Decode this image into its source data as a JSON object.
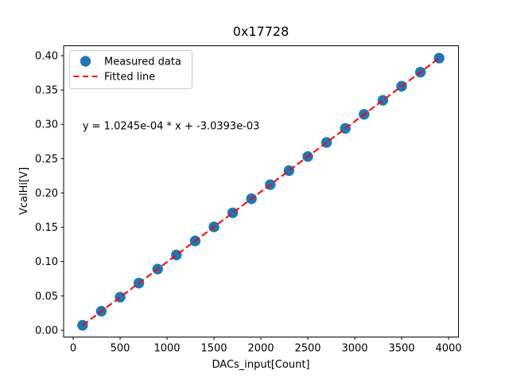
{
  "figure": {
    "background": "#ffffff"
  },
  "chart_data": {
    "type": "scatter",
    "title": "0x17728",
    "xlabel": "DACs_input[Count]",
    "ylabel": "VcalHi[V]",
    "xlim": [
      -102,
      4106
    ],
    "ylim": [
      -0.0099,
      0.4145
    ],
    "xticks": [
      0,
      500,
      1000,
      1500,
      2000,
      2500,
      3000,
      3500,
      4000
    ],
    "xtick_labels": [
      "0",
      "500",
      "1000",
      "1500",
      "2000",
      "2500",
      "3000",
      "3500",
      "4000"
    ],
    "yticks": [
      0.0,
      0.05,
      0.1,
      0.15,
      0.2,
      0.25,
      0.3,
      0.35,
      0.4
    ],
    "ytick_labels": [
      "0.00",
      "0.05",
      "0.10",
      "0.15",
      "0.20",
      "0.25",
      "0.30",
      "0.35",
      "0.40"
    ],
    "grid": false,
    "legend": {
      "position": "upper-left",
      "entries": [
        {
          "label": "Measured data",
          "marker": "circle",
          "color": "#1f77b4"
        },
        {
          "label": "Fitted line",
          "marker": "dashed-line",
          "color": "#ff0000"
        }
      ]
    },
    "annotation": {
      "text": "y = 1.0245e-04 * x + -3.0393e-03",
      "x": 100,
      "y": 0.293
    },
    "series": [
      {
        "name": "Measured data",
        "type": "scatter",
        "color": "#1f77b4",
        "marker": "circle",
        "marker_radius_px": 6.7,
        "x": [
          100,
          300,
          500,
          700,
          900,
          1100,
          1300,
          1500,
          1700,
          1900,
          2100,
          2300,
          2500,
          2700,
          2900,
          3100,
          3300,
          3500,
          3700,
          3900
        ],
        "y": [
          0.0072,
          0.0277,
          0.0482,
          0.0687,
          0.0892,
          0.1097,
          0.1301,
          0.1506,
          0.1711,
          0.1916,
          0.2121,
          0.2326,
          0.2531,
          0.2736,
          0.2941,
          0.3146,
          0.335,
          0.3555,
          0.376,
          0.3965
        ]
      },
      {
        "name": "Fitted line",
        "type": "line",
        "linestyle": "dashed",
        "color": "#ff0000",
        "slope": 0.00010245,
        "intercept": -0.0030393,
        "x_range": [
          100,
          3900
        ]
      }
    ]
  }
}
